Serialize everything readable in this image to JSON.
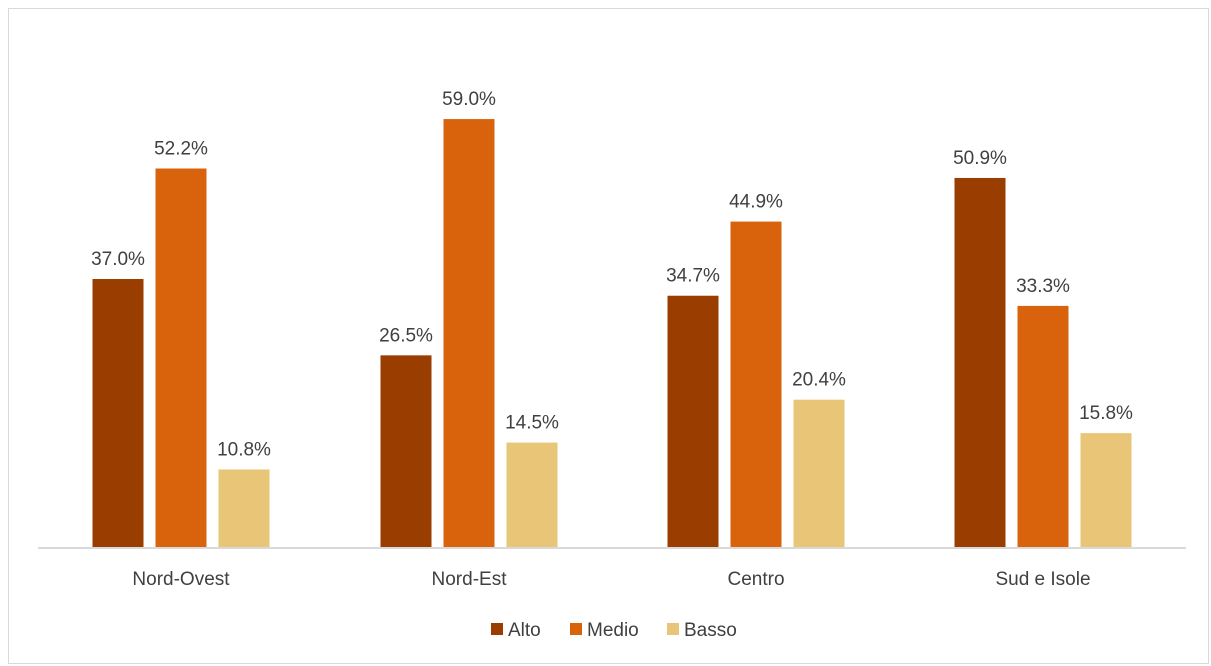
{
  "chart_data": {
    "type": "bar",
    "categories": [
      "Nord-Ovest",
      "Nord-Est",
      "Centro",
      "Sud e Isole"
    ],
    "series": [
      {
        "name": "Alto",
        "color": "#993d00",
        "values": [
          37.0,
          26.5,
          34.7,
          50.9
        ],
        "labels": [
          "37.0%",
          "26.5%",
          "34.7%",
          "50.9%"
        ]
      },
      {
        "name": "Medio",
        "color": "#d8630c",
        "values": [
          52.2,
          59.0,
          44.9,
          33.3
        ],
        "labels": [
          "52.2%",
          "59.0%",
          "44.9%",
          "33.3%"
        ]
      },
      {
        "name": "Basso",
        "color": "#e8c577",
        "values": [
          10.8,
          14.5,
          20.4,
          15.8
        ],
        "labels": [
          "10.8%",
          "14.5%",
          "20.4%",
          "15.8%"
        ]
      }
    ],
    "ylim": [
      0,
      60
    ],
    "grid": false,
    "legend_position": "bottom",
    "title": "",
    "xlabel": "",
    "ylabel": ""
  }
}
